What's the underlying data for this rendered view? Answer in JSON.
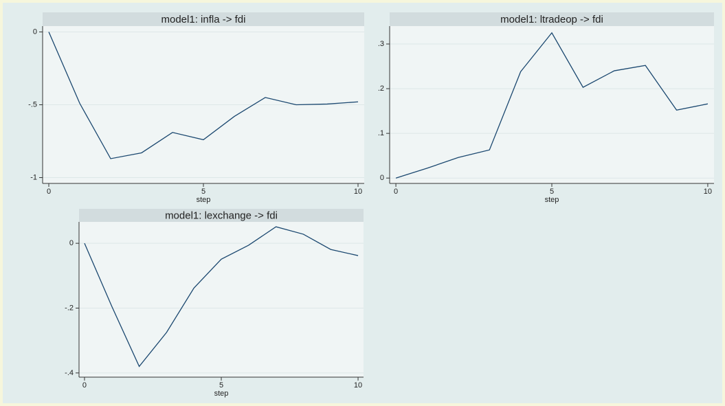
{
  "chart_data": [
    {
      "type": "line",
      "title": "model1: infla -> fdi",
      "xlabel": "step",
      "x": [
        0,
        1,
        2,
        3,
        4,
        5,
        6,
        7,
        8,
        9,
        10
      ],
      "values": [
        0,
        -0.49,
        -0.87,
        -0.83,
        -0.69,
        -0.74,
        -0.58,
        -0.45,
        -0.5,
        -0.495,
        -0.48
      ],
      "color": "#1a476f",
      "xlim": [
        -0.2,
        10.2
      ],
      "ylim": [
        -1.04,
        0.04
      ],
      "xticks": [
        0,
        5,
        10
      ],
      "yticks": [
        0,
        {
          "value": -0.5,
          "label": "-.5"
        },
        -1
      ],
      "grid": true
    },
    {
      "type": "line",
      "title": "model1: ltradeop -> fdi",
      "xlabel": "step",
      "x": [
        0,
        1,
        2,
        3,
        4,
        5,
        6,
        7,
        8,
        9,
        10
      ],
      "values": [
        0,
        0.022,
        0.046,
        0.063,
        0.238,
        0.325,
        0.203,
        0.24,
        0.252,
        0.152,
        0.166
      ],
      "color": "#1a476f",
      "xlim": [
        -0.2,
        10.2
      ],
      "ylim": [
        -0.012,
        0.34
      ],
      "xticks": [
        0,
        5,
        10
      ],
      "yticks": [
        0,
        {
          "value": 0.1,
          "label": ".1"
        },
        {
          "value": 0.2,
          "label": ".2"
        },
        {
          "value": 0.3,
          "label": ".3"
        }
      ],
      "grid": true
    },
    {
      "type": "line",
      "title": "model1: lexchange -> fdi",
      "xlabel": "step",
      "x": [
        0,
        1,
        2,
        3,
        4,
        5,
        6,
        7,
        8,
        9,
        10
      ],
      "values": [
        0,
        -0.195,
        -0.38,
        -0.275,
        -0.138,
        -0.049,
        -0.006,
        0.051,
        0.028,
        -0.019,
        -0.038
      ],
      "color": "#1a476f",
      "xlim": [
        -0.2,
        10.2
      ],
      "ylim": [
        -0.413,
        0.066
      ],
      "xticks": [
        0,
        5,
        10
      ],
      "yticks": [
        0,
        {
          "value": -0.2,
          "label": "-.2"
        },
        {
          "value": -0.4,
          "label": "-.4"
        }
      ],
      "grid": true
    }
  ]
}
